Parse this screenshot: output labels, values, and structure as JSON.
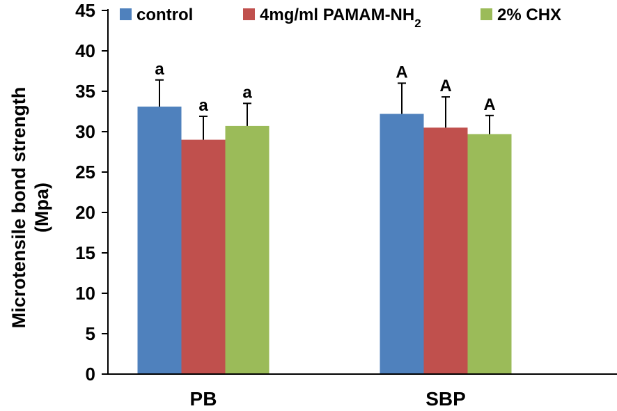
{
  "chart_data": {
    "type": "bar",
    "title": "",
    "xlabel": "",
    "ylabel_lines": [
      "Microtensile bond strength",
      "(Mpa)"
    ],
    "ylim": [
      0,
      45
    ],
    "yticks": [
      "0",
      "5",
      "10",
      "15",
      "20",
      "25",
      "30",
      "35",
      "40",
      "45"
    ],
    "categories": [
      "PB",
      "SBP"
    ],
    "legend_position": "top",
    "series": [
      {
        "name": "control",
        "legend_main": "control",
        "legend_sub": "",
        "color": "#4F81BD",
        "values": [
          33.1,
          32.2
        ],
        "errors": [
          3.3,
          3.8
        ],
        "labels": [
          "a",
          "A"
        ]
      },
      {
        "name": "4mg/ml PAMAM-NH2",
        "legend_main": "4mg/ml PAMAM-NH",
        "legend_sub": "2",
        "color": "#C0504D",
        "values": [
          29.0,
          30.5
        ],
        "errors": [
          2.9,
          3.8
        ],
        "labels": [
          "a",
          "A"
        ]
      },
      {
        "name": "2% CHX",
        "legend_main": "2% CHX",
        "legend_sub": "",
        "color": "#9BBB59",
        "values": [
          30.7,
          29.7
        ],
        "errors": [
          2.8,
          2.3
        ],
        "labels": [
          "a",
          "A"
        ]
      }
    ]
  }
}
